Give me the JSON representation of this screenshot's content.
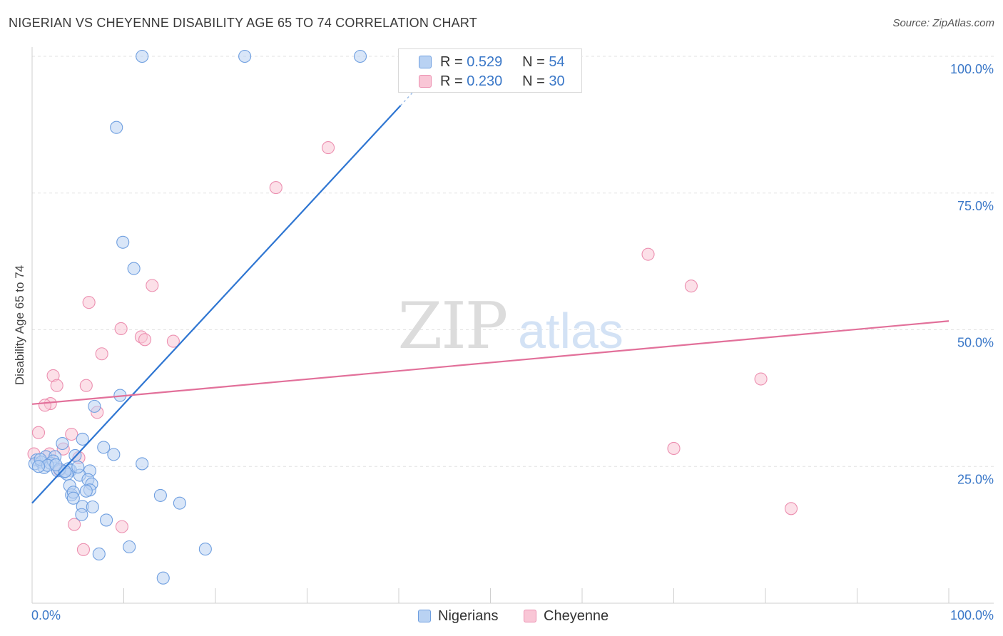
{
  "header": {
    "title": "NIGERIAN VS CHEYENNE DISABILITY AGE 65 TO 74 CORRELATION CHART",
    "source": "Source: ZipAtlas.com"
  },
  "watermark": {
    "zip": "ZIP",
    "atlas": "atlas"
  },
  "legend": {
    "series": [
      {
        "name": "Nigerians",
        "r_label": "R =",
        "r_value": "0.529",
        "n_label": "N =",
        "n_value": "54",
        "color": "#6f9fe0"
      },
      {
        "name": "Cheyenne",
        "r_label": "R =",
        "r_value": "0.230",
        "n_label": "N =",
        "n_value": "30",
        "color": "#ec8fb0"
      }
    ]
  },
  "chart_data": {
    "type": "scatter",
    "title": "NIGERIAN VS CHEYENNE DISABILITY AGE 65 TO 74 CORRELATION CHART",
    "xlabel": "",
    "ylabel": "Disability Age 65 to 74",
    "xlim": [
      0,
      100
    ],
    "ylim": [
      0,
      100
    ],
    "x_tick_labels": [
      "0.0%",
      "100.0%"
    ],
    "y_ticks": [
      25,
      50,
      75,
      100
    ],
    "y_tick_labels": [
      "25.0%",
      "50.0%",
      "75.0%",
      "100.0%"
    ],
    "grid": true,
    "series": [
      {
        "name": "Nigerians",
        "color": "#6f9fe0",
        "fill": "#b9d2f3",
        "trend": {
          "x0": 0,
          "y0": 18.3,
          "x1": 40.2,
          "y1": 91.0,
          "dash_to_x": 42.5,
          "dash_to_y": 95.2
        },
        "points": [
          [
            12.0,
            100.0
          ],
          [
            23.2,
            100.0
          ],
          [
            35.8,
            100.0
          ],
          [
            9.2,
            87.0
          ],
          [
            9.9,
            66.0
          ],
          [
            11.1,
            61.2
          ],
          [
            9.6,
            38.0
          ],
          [
            6.8,
            36.0
          ],
          [
            5.5,
            30.0
          ],
          [
            7.8,
            28.5
          ],
          [
            8.9,
            27.2
          ],
          [
            4.7,
            27.0
          ],
          [
            0.5,
            26.2
          ],
          [
            1.5,
            26.8
          ],
          [
            2.5,
            26.8
          ],
          [
            3.3,
            29.2
          ],
          [
            0.3,
            25.5
          ],
          [
            1.0,
            25.8
          ],
          [
            1.3,
            24.8
          ],
          [
            2.0,
            25.6
          ],
          [
            2.8,
            24.2
          ],
          [
            3.5,
            24.0
          ],
          [
            4.0,
            24.6
          ],
          [
            4.2,
            24.3
          ],
          [
            6.3,
            24.2
          ],
          [
            12.0,
            25.5
          ],
          [
            3.8,
            23.6
          ],
          [
            5.2,
            23.4
          ],
          [
            6.1,
            22.6
          ],
          [
            4.1,
            21.5
          ],
          [
            6.5,
            21.8
          ],
          [
            4.3,
            19.8
          ],
          [
            6.3,
            20.7
          ],
          [
            4.5,
            20.3
          ],
          [
            5.9,
            20.5
          ],
          [
            4.5,
            19.2
          ],
          [
            14.0,
            19.7
          ],
          [
            16.1,
            18.3
          ],
          [
            5.5,
            17.7
          ],
          [
            6.6,
            17.6
          ],
          [
            5.4,
            16.2
          ],
          [
            8.1,
            15.2
          ],
          [
            10.6,
            10.3
          ],
          [
            18.9,
            9.9
          ],
          [
            7.3,
            9.0
          ],
          [
            14.3,
            4.6
          ],
          [
            0.9,
            26.3
          ],
          [
            2.3,
            26.0
          ],
          [
            1.7,
            25.2
          ],
          [
            3.0,
            24.5
          ],
          [
            0.7,
            25.0
          ],
          [
            5.0,
            24.9
          ],
          [
            3.6,
            24.1
          ],
          [
            2.6,
            25.3
          ]
        ]
      },
      {
        "name": "Cheyenne",
        "color": "#ec8fb0",
        "fill": "#f9c6d6",
        "trend": {
          "x0": 0,
          "y0": 36.4,
          "x1": 100,
          "y1": 51.6
        },
        "points": [
          [
            32.3,
            83.3
          ],
          [
            26.6,
            76.0
          ],
          [
            67.2,
            63.8
          ],
          [
            71.9,
            58.0
          ],
          [
            13.1,
            58.1
          ],
          [
            6.2,
            55.0
          ],
          [
            9.7,
            50.2
          ],
          [
            11.9,
            48.7
          ],
          [
            12.3,
            48.2
          ],
          [
            15.4,
            47.9
          ],
          [
            7.6,
            45.6
          ],
          [
            2.3,
            41.6
          ],
          [
            2.7,
            39.8
          ],
          [
            5.9,
            39.8
          ],
          [
            7.1,
            34.9
          ],
          [
            2.0,
            36.5
          ],
          [
            1.4,
            36.2
          ],
          [
            79.5,
            41.0
          ],
          [
            0.7,
            31.2
          ],
          [
            4.3,
            30.9
          ],
          [
            3.4,
            28.2
          ],
          [
            70.0,
            28.3
          ],
          [
            0.2,
            27.3
          ],
          [
            1.9,
            27.3
          ],
          [
            5.1,
            26.6
          ],
          [
            3.0,
            24.3
          ],
          [
            4.6,
            14.4
          ],
          [
            9.8,
            14.0
          ],
          [
            82.8,
            17.3
          ],
          [
            5.6,
            9.8
          ]
        ]
      }
    ]
  }
}
